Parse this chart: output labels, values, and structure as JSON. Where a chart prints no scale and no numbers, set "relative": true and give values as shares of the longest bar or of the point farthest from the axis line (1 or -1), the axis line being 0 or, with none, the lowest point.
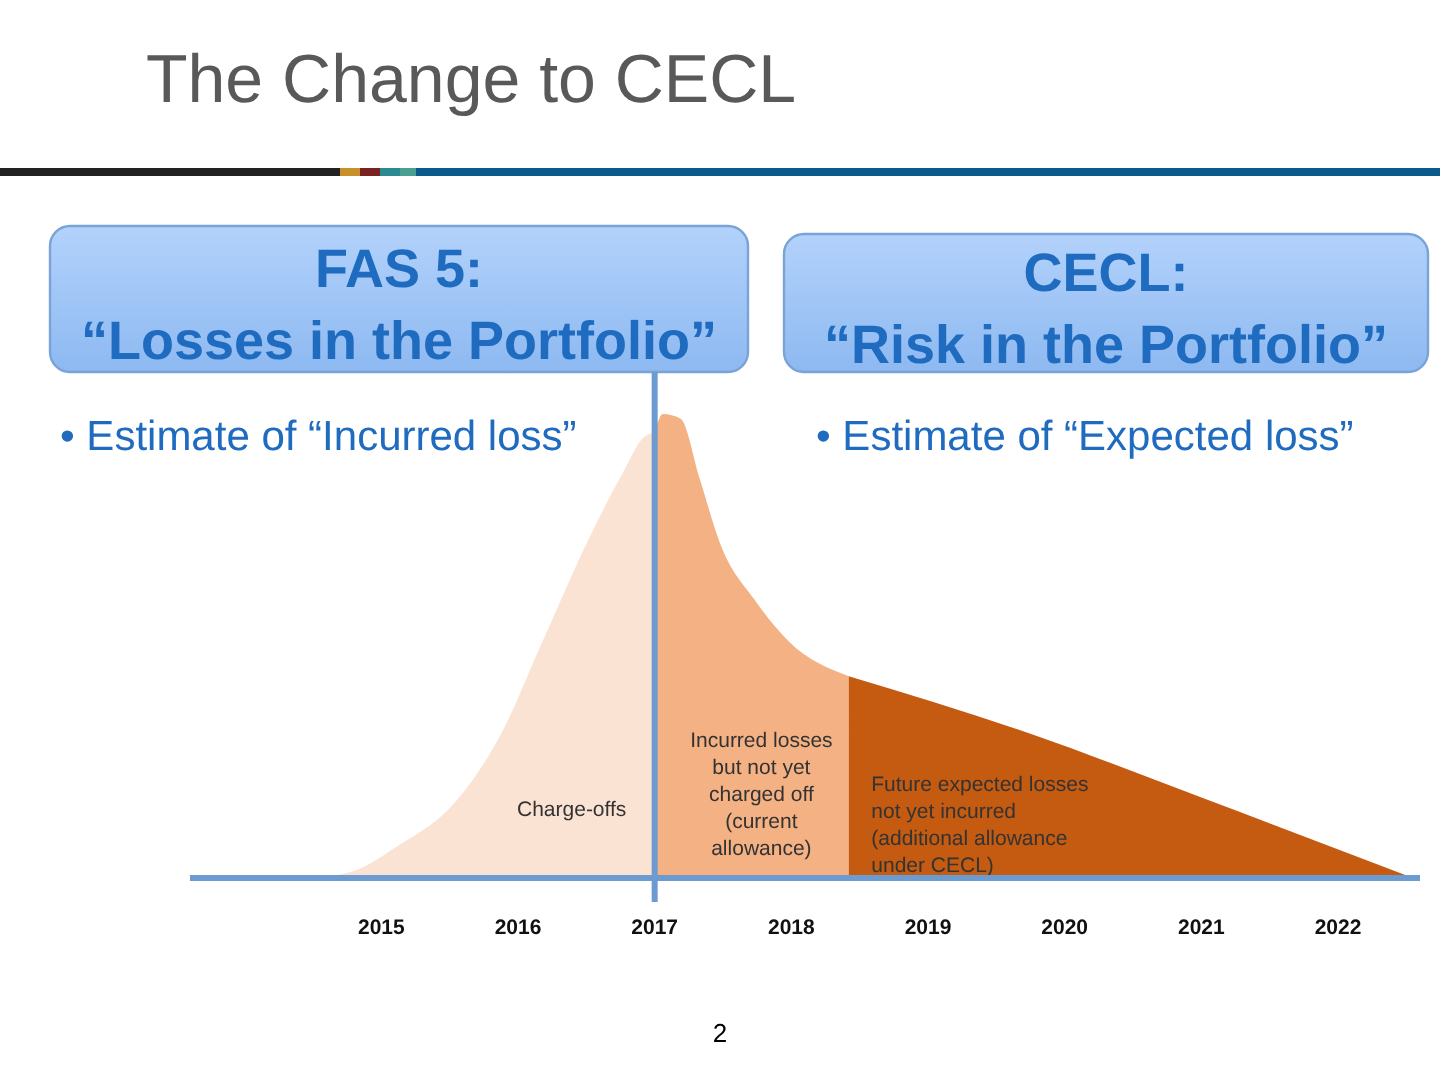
{
  "chart_data": {
    "type": "area",
    "title": "The Change to CECL",
    "relative": true,
    "xlim": [
      2013.6,
      2022.6
    ],
    "xticks": [
      2015,
      2016,
      2017,
      2018,
      2019,
      2020,
      2021,
      2022
    ],
    "series": [
      {
        "name": "Charge-offs",
        "color": "#fbe3d4",
        "x": [
          2014.47,
          2014.8,
          2015.1,
          2015.56,
          2015.875,
          2016.18,
          2016.5,
          2016.77,
          2016.92,
          2017
        ],
        "values": [
          0,
          0.015,
          0.065,
          0.17,
          0.31,
          0.51,
          0.72,
          0.875,
          0.95,
          0.96
        ]
      },
      {
        "name": "Incurred losses but not yet charged off (current allowance)",
        "color": "#f4b183",
        "x": [
          2017,
          2017.06,
          2017.19,
          2017.33,
          2017.48,
          2017.73,
          2017.98,
          2018.42
        ],
        "values": [
          0.96,
          1,
          0.99,
          0.86,
          0.72,
          0.6,
          0.51,
          0.435
        ]
      },
      {
        "name": "Future expected losses not yet incurred (additional allowance under CECL)",
        "color": "#c55a11",
        "x": [
          2018.42,
          2019.76,
          2021.03,
          2022.55
        ],
        "values": [
          0.435,
          0.31,
          0.17,
          0
        ]
      }
    ],
    "ref_lines": [
      {
        "axis": "x",
        "value": 2017,
        "color": "#6b9bd1"
      }
    ],
    "annotations": [
      "FAS 5:\n“Losses in the Portfolio”",
      "CECL:\n“Risk in the Portfolio”",
      "• Estimate of “Incurred loss”",
      "• Estimate of “Expected loss”",
      "2"
    ]
  }
}
